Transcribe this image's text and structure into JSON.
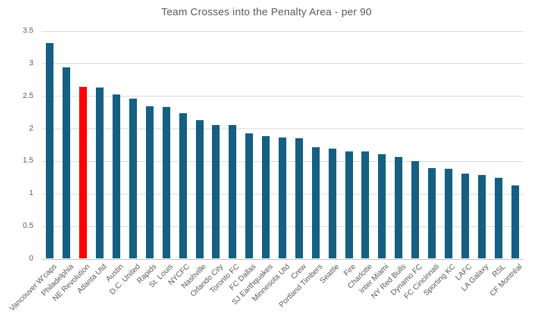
{
  "chart_data": {
    "type": "bar",
    "title": "Team Crosses into the Penalty Area - per 90",
    "categories": [
      "Vancouver W'caps",
      "Philadelphia",
      "NE Revolution",
      "Atlanta Utd",
      "Austin",
      "D.C. United",
      "Rapids",
      "St. Louis",
      "NYCFC",
      "Nashville",
      "Orlando City",
      "Toronto FC",
      "FC Dallas",
      "SJ Earthquakes",
      "Minnesota Utd",
      "Crew",
      "Portland Timbers",
      "Seattle",
      "Fire",
      "Charlotte",
      "Inter Miami",
      "NY Red Bulls",
      "Dynamo FC",
      "FC Cincinnati",
      "Sporting KC",
      "LAFC",
      "LA Galaxy",
      "RSL",
      "CF Montréal"
    ],
    "values": [
      3.31,
      2.94,
      2.64,
      2.63,
      2.52,
      2.46,
      2.34,
      2.33,
      2.24,
      2.13,
      2.05,
      2.05,
      1.93,
      1.88,
      1.86,
      1.85,
      1.71,
      1.69,
      1.65,
      1.65,
      1.61,
      1.56,
      1.5,
      1.39,
      1.38,
      1.31,
      1.29,
      1.24,
      1.13
    ],
    "highlighted_category": "NE Revolution",
    "highlight_index": 2,
    "bar_color": "#156082",
    "highlight_color": "#FF0000",
    "ylim": [
      0,
      3.5
    ],
    "ytick_step": 0.5,
    "ytick_labels": [
      "0",
      "0.5",
      "1",
      "1.5",
      "2",
      "2.5",
      "3",
      "3.5"
    ],
    "xlabel": "",
    "ylabel": "",
    "grid": true,
    "legend_position": "none",
    "colors": {
      "grid": "#d9d9d9",
      "axis": "#bfbfbf",
      "tick_text": "#595959",
      "title_text": "#595959",
      "background": "#ffffff"
    }
  }
}
